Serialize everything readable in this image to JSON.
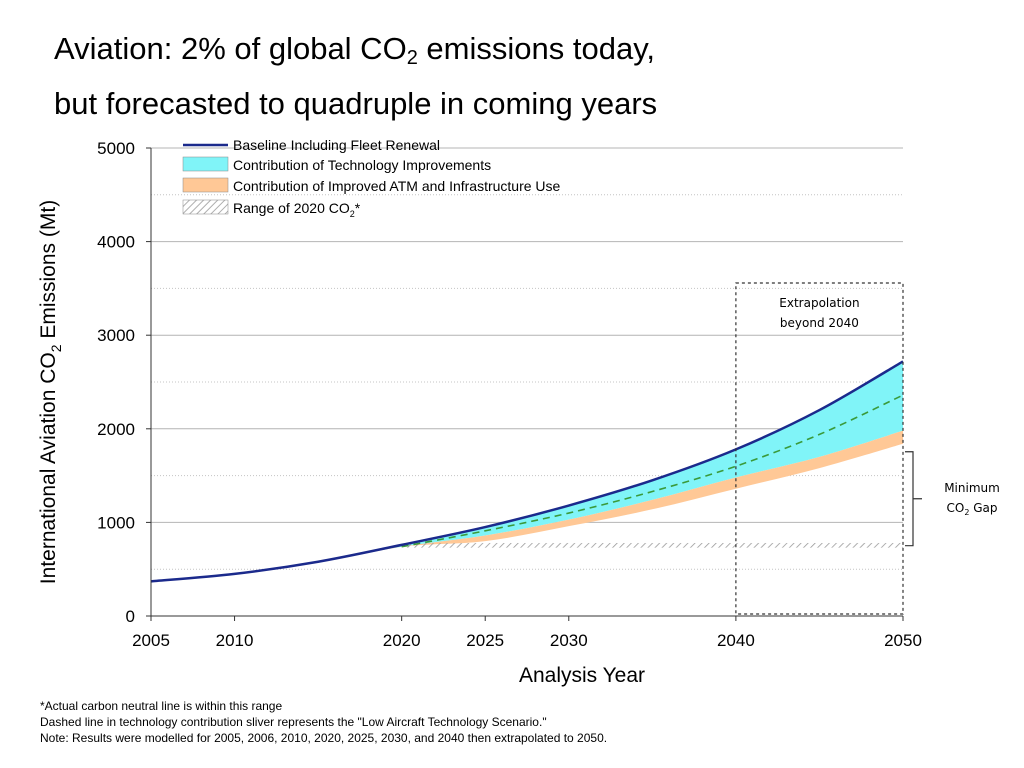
{
  "page": {
    "title_prefix": "Aviation:  2% of global CO",
    "title_sub": "2",
    "title_suffix": " emissions today,",
    "title_line2": "but forecasted to quadruple in coming years"
  },
  "chart_data": {
    "type": "area",
    "xlabel": "Analysis Year",
    "ylabel_prefix": "International Aviation CO",
    "ylabel_sub": "2",
    "ylabel_suffix": " Emissions (Mt)",
    "xlim": [
      2005,
      2050
    ],
    "ylim": [
      0,
      5000
    ],
    "x_ticks": [
      2005,
      2010,
      2020,
      2025,
      2030,
      2040,
      2050
    ],
    "y_ticks": [
      0,
      1000,
      2000,
      3000,
      4000,
      5000
    ],
    "grid": "horizontal",
    "x": [
      2005,
      2010,
      2015,
      2020,
      2025,
      2030,
      2035,
      2040,
      2045,
      2050
    ],
    "series": [
      {
        "name": "Baseline Including Fleet Renewal",
        "kind": "line",
        "color": "#1b2a8c",
        "values": [
          370,
          450,
          580,
          760,
          950,
          1180,
          1450,
          1780,
          2200,
          2720
        ]
      },
      {
        "name": "Contribution of Technology Improvements",
        "kind": "band",
        "color": "#80f4f8",
        "values": [
          370,
          450,
          580,
          740,
          860,
          1030,
          1240,
          1480,
          1700,
          1980
        ]
      },
      {
        "name": "Contribution of Improved ATM and Infrastructure Use",
        "kind": "band",
        "color": "#ffc896",
        "values": [
          370,
          450,
          580,
          740,
          800,
          960,
          1140,
          1360,
          1580,
          1840
        ]
      },
      {
        "name": "Range of 2020 CO2*",
        "kind": "hatch",
        "color": "#999999",
        "values_low": [
          null,
          null,
          null,
          730,
          730,
          730,
          730,
          730,
          730,
          730
        ],
        "values_high": [
          null,
          null,
          null,
          780,
          780,
          780,
          780,
          780,
          780,
          780
        ]
      }
    ],
    "low_aircraft_technology_scenario": {
      "style": "dashed",
      "color": "#3a9a3a",
      "values": [
        370,
        450,
        580,
        740,
        910,
        1100,
        1330,
        1600,
        1940,
        2360
      ]
    },
    "legend": {
      "placement": "top-left",
      "entries": [
        {
          "label": "Baseline Including Fleet Renewal",
          "symbol": "line",
          "color": "#1b2a8c"
        },
        {
          "label": "Contribution of Technology Improvements",
          "symbol": "box",
          "color": "#80f4f8"
        },
        {
          "label": "Contribution of Improved ATM and Infrastructure Use",
          "symbol": "box",
          "color": "#ffc896"
        },
        {
          "label_prefix": "Range of 2020 CO",
          "label_sub": "2",
          "label_suffix": "*",
          "symbol": "hatch",
          "color": "#999999"
        }
      ]
    },
    "annotations": {
      "extrapolation_line1": "Extrapolation",
      "extrapolation_line2": "beyond 2040",
      "extrapolation_range": [
        2040,
        2050
      ],
      "gap_line1": "Minimum",
      "gap_line2_prefix": "CO",
      "gap_line2_sub": "2",
      "gap_line2_suffix": " Gap"
    }
  },
  "notes": {
    "line1": "*Actual carbon neutral line is within this range",
    "line2": "Dashed line in technology contribution sliver represents the \"Low Aircraft Technology Scenario.\"",
    "line3": "Note: Results were modelled for 2005, 2006, 2010, 2020, 2025, 2030, and 2040 then extrapolated to 2050."
  }
}
